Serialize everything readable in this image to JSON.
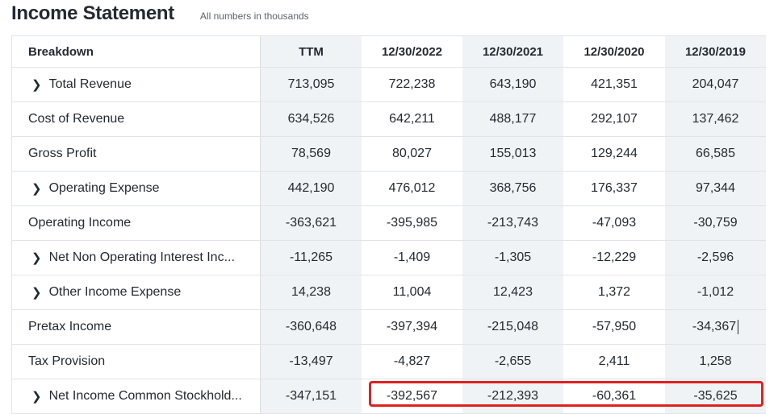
{
  "header": {
    "title": "Income Statement",
    "subtitle": "All numbers in thousands"
  },
  "table": {
    "columns": [
      "Breakdown",
      "TTM",
      "12/30/2022",
      "12/30/2021",
      "12/30/2020",
      "12/30/2019"
    ],
    "rows": [
      {
        "label": "Total Revenue",
        "expandable": true,
        "values": [
          "713,095",
          "722,238",
          "643,190",
          "421,351",
          "204,047"
        ]
      },
      {
        "label": "Cost of Revenue",
        "expandable": false,
        "values": [
          "634,526",
          "642,211",
          "488,177",
          "292,107",
          "137,462"
        ]
      },
      {
        "label": "Gross Profit",
        "expandable": false,
        "values": [
          "78,569",
          "80,027",
          "155,013",
          "129,244",
          "66,585"
        ]
      },
      {
        "label": "Operating Expense",
        "expandable": true,
        "values": [
          "442,190",
          "476,012",
          "368,756",
          "176,337",
          "97,344"
        ]
      },
      {
        "label": "Operating Income",
        "expandable": false,
        "values": [
          "-363,621",
          "-395,985",
          "-213,743",
          "-47,093",
          "-30,759"
        ]
      },
      {
        "label": "Net Non Operating Interest Inc...",
        "expandable": true,
        "values": [
          "-11,265",
          "-1,409",
          "-1,305",
          "-12,229",
          "-2,596"
        ]
      },
      {
        "label": "Other Income Expense",
        "expandable": true,
        "values": [
          "14,238",
          "11,004",
          "12,423",
          "1,372",
          "-1,012"
        ]
      },
      {
        "label": "Pretax Income",
        "expandable": false,
        "values": [
          "-360,648",
          "-397,394",
          "-215,048",
          "-57,950",
          "-34,367"
        ]
      },
      {
        "label": "Tax Provision",
        "expandable": false,
        "values": [
          "-13,497",
          "-4,827",
          "-2,655",
          "2,411",
          "1,258"
        ]
      },
      {
        "label": "Net Income Common Stockhold...",
        "expandable": true,
        "values": [
          "-347,151",
          "-392,567",
          "-212,393",
          "-60,361",
          "-35,625"
        ]
      }
    ]
  },
  "colors": {
    "highlight_border": "#e02020",
    "shaded_column": "#f0f3f5",
    "text": "#232a31"
  },
  "icons": {
    "expand": "chevron-right-icon"
  }
}
